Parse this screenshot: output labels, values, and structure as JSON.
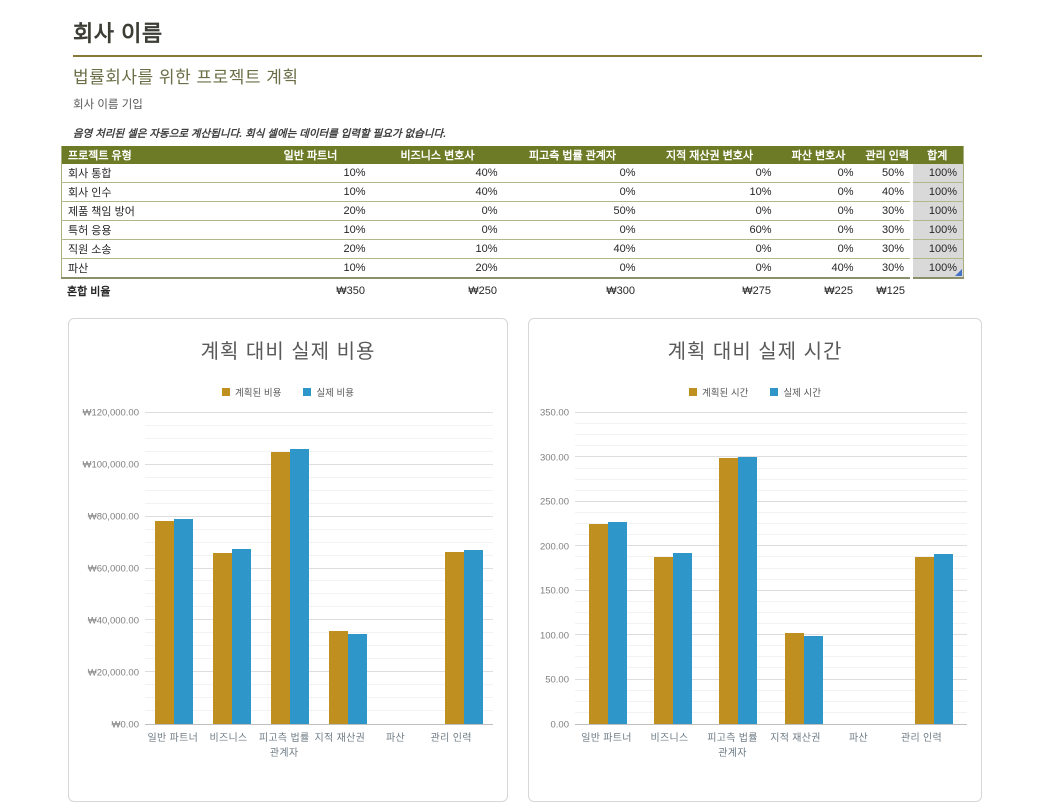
{
  "page": {
    "title": "회사 이름",
    "subtitle": "법률회사를 위한 프로젝트 계획",
    "subtitle2": "회사 이름 기입",
    "note": "음영 처리된 셀은 자동으로 계산됩니다. 회식 셀에는 데이터를 입력할 필요가 없습니다."
  },
  "table": {
    "columns": [
      "프로젝트 유형",
      "일반 파트너",
      "비즈니스 변호사",
      "피고측 법률 관계자",
      "지적 재산권 변호사",
      "파산 변호사",
      "관리 인력",
      "합계"
    ],
    "rows": [
      {
        "label": "회사 통합",
        "values": [
          "10%",
          "40%",
          "0%",
          "0%",
          "0%",
          "50%"
        ],
        "total": "100%"
      },
      {
        "label": "회사 인수",
        "values": [
          "10%",
          "40%",
          "0%",
          "10%",
          "0%",
          "40%"
        ],
        "total": "100%"
      },
      {
        "label": "제품 책임 방어",
        "values": [
          "20%",
          "0%",
          "50%",
          "0%",
          "0%",
          "30%"
        ],
        "total": "100%"
      },
      {
        "label": "특허 응용",
        "values": [
          "10%",
          "0%",
          "0%",
          "60%",
          "0%",
          "30%"
        ],
        "total": "100%"
      },
      {
        "label": "직원 소송",
        "values": [
          "20%",
          "10%",
          "40%",
          "0%",
          "0%",
          "30%"
        ],
        "total": "100%"
      },
      {
        "label": "파산",
        "values": [
          "10%",
          "20%",
          "0%",
          "0%",
          "40%",
          "30%"
        ],
        "total": "100%"
      }
    ],
    "footer": {
      "label": "혼합 비율",
      "values": [
        "₩350",
        "₩250",
        "₩300",
        "₩275",
        "₩225",
        "₩125"
      ]
    }
  },
  "chart_data": [
    {
      "type": "bar",
      "title": "계획 대비 실제 비용",
      "categories": [
        "일반 파트너",
        "비즈니스",
        "피고측 법률 관계자",
        "지적 재산권",
        "파산",
        "관리 인력"
      ],
      "series": [
        {
          "name": "계획된 비용",
          "color": "#bf8f1f",
          "values": [
            78500,
            66000,
            105000,
            36000,
            0,
            66500
          ]
        },
        {
          "name": "실제 비용",
          "color": "#2e96c8",
          "values": [
            79200,
            67500,
            106000,
            34800,
            0,
            67200
          ]
        }
      ],
      "ylim": [
        0,
        120000
      ],
      "ytick_step": 20000,
      "minor_per_major": 4,
      "ytick_labels": [
        "₩120,000.00",
        "₩100,000.00",
        "₩80,000.00",
        "₩60,000.00",
        "₩40,000.00",
        "₩20,000.00",
        "₩0.00"
      ],
      "legend_position": "top",
      "grid": true,
      "yaxis_gutter": 76
    },
    {
      "type": "bar",
      "title": "계획 대비 실제 시간",
      "categories": [
        "일반 파트너",
        "비즈니스",
        "피고측 법률 관계자",
        "지적 재산권",
        "파산",
        "관리 인력"
      ],
      "series": [
        {
          "name": "계획된 시간",
          "color": "#bf8f1f",
          "values": [
            225,
            188,
            299,
            102,
            0,
            188
          ]
        },
        {
          "name": "실제 시간",
          "color": "#2e96c8",
          "values": [
            227,
            193,
            301,
            99,
            0,
            191
          ]
        }
      ],
      "ylim": [
        0,
        350
      ],
      "ytick_step": 50,
      "minor_per_major": 4,
      "ytick_labels": [
        "350.00",
        "300.00",
        "250.00",
        "200.00",
        "150.00",
        "100.00",
        "50.00",
        "0.00"
      ],
      "legend_position": "top",
      "grid": true,
      "yaxis_gutter": 46
    }
  ],
  "colors": {
    "header_bg": "#6d7b27",
    "row_border": "#b2b78b",
    "total_cell_bg": "#d9d9d9",
    "planned_bar": "#bf8f1f",
    "actual_bar": "#2e96c8",
    "title_rule": "#857a36",
    "comment_indicator": "#4472c4"
  }
}
